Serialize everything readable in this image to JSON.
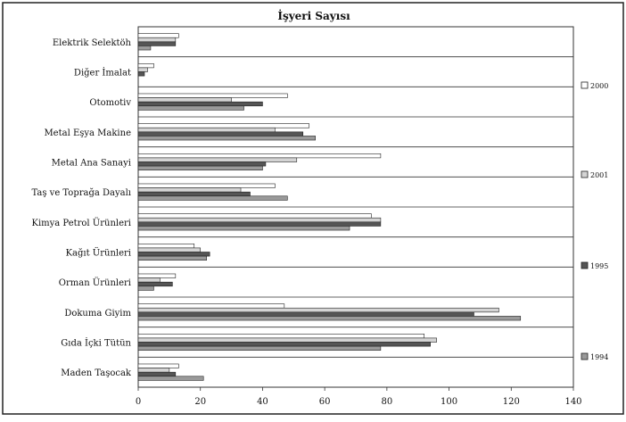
{
  "chart_data": {
    "type": "bar",
    "orientation": "horizontal",
    "title": "İşyeri Sayısı",
    "xlabel": "",
    "ylabel": "",
    "xlim": [
      0,
      140
    ],
    "x_ticks": [
      "0",
      "20",
      "40",
      "60",
      "80",
      "100",
      "120",
      "140"
    ],
    "grid": "horizontal category separators",
    "legend_position": "right",
    "categories": [
      "Elektrik Selektöh",
      "Diğer İmalat",
      "Otomotiv",
      "Metal Eşya Makine",
      "Metal Ana Sanayi",
      "Taş ve Toprağa Dayalı",
      "Kimya Petrol Ürünleri",
      "Kağıt Ürünleri",
      "Orman Ürünleri",
      "Dokuma Giyim",
      "Gıda İçki Tütün",
      "Maden Taşocak"
    ],
    "series": [
      {
        "name": "2000",
        "color": "#ffffff",
        "values": [
          13,
          5,
          48,
          55,
          78,
          44,
          75,
          18,
          12,
          47,
          92,
          13
        ]
      },
      {
        "name": "2001",
        "color": "#d4d4d4",
        "values": [
          12,
          3,
          30,
          44,
          51,
          33,
          78,
          20,
          7,
          116,
          96,
          10
        ]
      },
      {
        "name": "1995",
        "color": "#555555",
        "values": [
          12,
          2,
          40,
          53,
          41,
          36,
          78,
          23,
          11,
          108,
          94,
          12
        ]
      },
      {
        "name": "1994",
        "color": "#9a9a9a",
        "values": [
          4,
          0,
          34,
          57,
          40,
          48,
          68,
          22,
          5,
          123,
          78,
          21
        ]
      }
    ]
  }
}
